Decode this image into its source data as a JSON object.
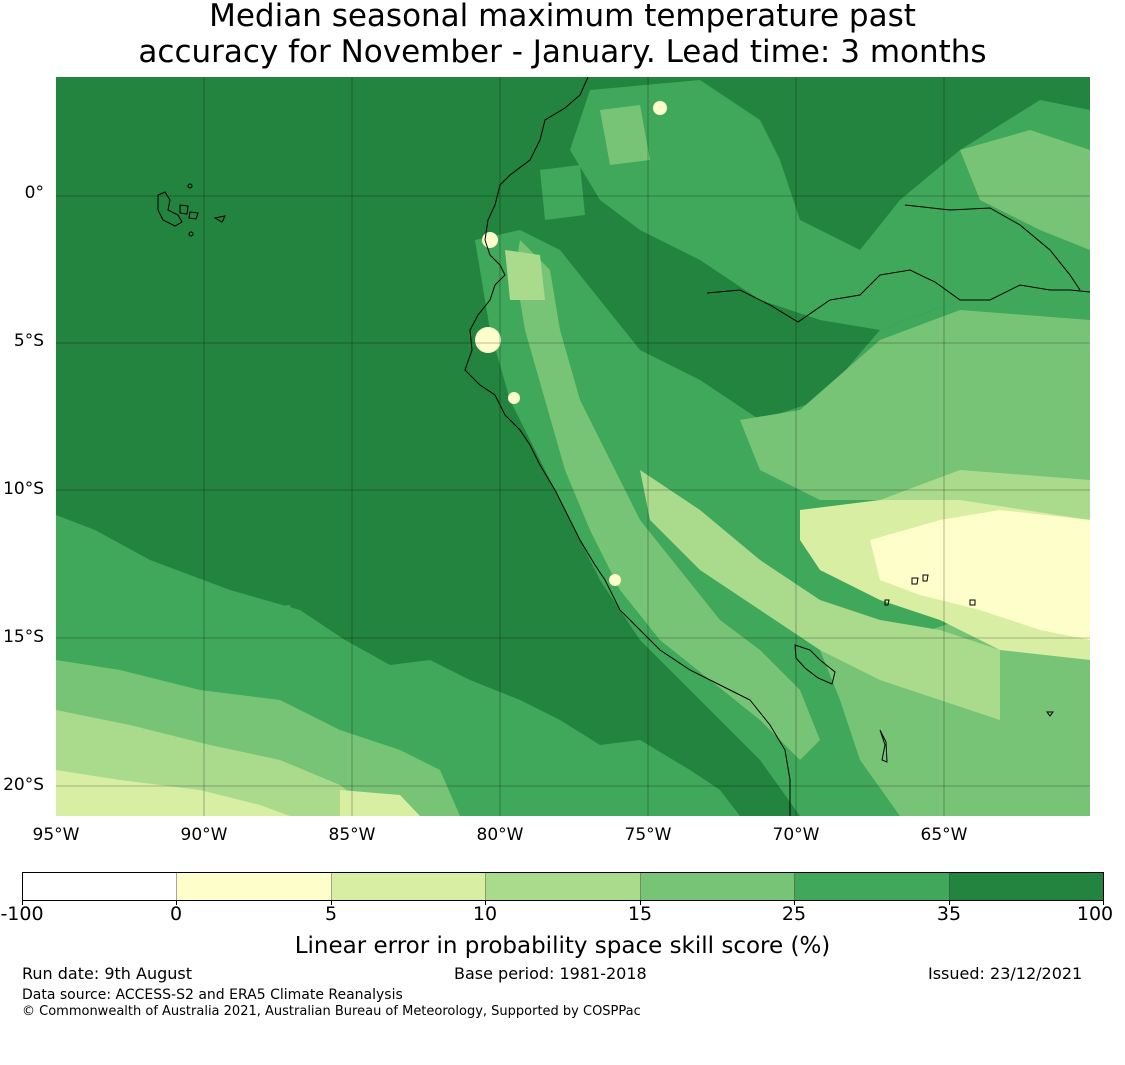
{
  "title": {
    "line1": "Median seasonal maximum temperature past",
    "line2": "accuracy for November - January. Lead time: 3 months"
  },
  "map": {
    "lat_labels": [
      "0°",
      "5°S",
      "10°S",
      "15°S",
      "20°S"
    ],
    "lon_labels": [
      "95°W",
      "90°W",
      "85°W",
      "80°W",
      "75°W",
      "70°W",
      "65°W"
    ],
    "extent": {
      "lon_min": -95,
      "lon_max": -60,
      "lat_min": -21,
      "lat_max": 4
    },
    "coastline": "Pacific coast of South America (Colombia, Ecuador, Peru, northern Chile)",
    "islands": "Galápagos Islands",
    "features": [
      "Amazon / Marañón river",
      "Lake Titicaca"
    ]
  },
  "colorbar": {
    "label": "Linear error in probability space skill score (%)",
    "ticks": [
      "-100",
      "0",
      "5",
      "10",
      "15",
      "25",
      "35",
      "100"
    ],
    "colors": [
      "#ffffff",
      "#fefecb",
      "#d8eea2",
      "#aadb8c",
      "#78c476",
      "#40a85a",
      "#23843f"
    ]
  },
  "footer": {
    "run_date": "Run date: 9th August",
    "base_period": "Base period: 1981-2018",
    "issued": "Issued: 23/12/2021",
    "data_source": "Data source: ACCESS-S2 and ERA5 Climate Reanalysis",
    "copyright": "© Commonwealth of Australia 2021, Australian Bureau of Meteorology, Supported by COSPPac"
  }
}
